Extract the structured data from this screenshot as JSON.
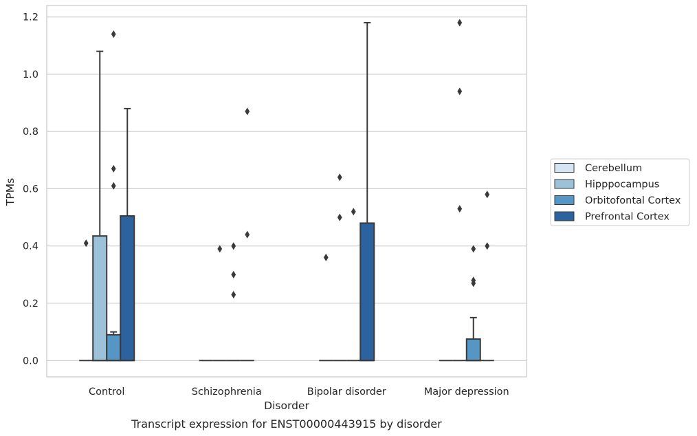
{
  "chart_data": {
    "type": "box",
    "caption": "Transcript expression for ENST00000443915 by disorder",
    "xlabel": "Disorder",
    "ylabel": "TPMs",
    "ylim": [
      -0.057,
      1.24
    ],
    "yticks": [
      0.0,
      0.2,
      0.4,
      0.6,
      0.8,
      1.0,
      1.2
    ],
    "ytick_labels": [
      "0.0",
      "0.2",
      "0.4",
      "0.6",
      "0.8",
      "1.0",
      "1.2"
    ],
    "grid": "horizontal",
    "legend_position": "right-outside",
    "categories": [
      "Control",
      "Schizophrenia",
      "Bipolar disorder",
      "Major depression"
    ],
    "series": [
      {
        "name": "Cerebellum",
        "color": "#d5e5f2",
        "boxes": [
          {
            "q1": 0,
            "median": 0,
            "q3": 0,
            "whislo": 0,
            "whishi": 0,
            "fliers": [
              0.41
            ]
          },
          {
            "q1": 0,
            "median": 0,
            "q3": 0,
            "whislo": 0,
            "whishi": 0,
            "fliers": []
          },
          {
            "q1": 0,
            "median": 0,
            "q3": 0,
            "whislo": 0,
            "whishi": 0,
            "fliers": [
              0.36
            ]
          },
          {
            "q1": 0,
            "median": 0,
            "q3": 0,
            "whislo": 0,
            "whishi": 0,
            "fliers": []
          }
        ]
      },
      {
        "name": "Hipppocampus",
        "color": "#9cc2da",
        "boxes": [
          {
            "q1": 0,
            "median": 0,
            "q3": 0.435,
            "whislo": 0,
            "whishi": 1.08,
            "fliers": []
          },
          {
            "q1": 0,
            "median": 0,
            "q3": 0,
            "whislo": 0,
            "whishi": 0,
            "fliers": [
              0.39
            ]
          },
          {
            "q1": 0,
            "median": 0,
            "q3": 0,
            "whislo": 0,
            "whishi": 0,
            "fliers": [
              0.64,
              0.5
            ]
          },
          {
            "q1": 0,
            "median": 0,
            "q3": 0,
            "whislo": 0,
            "whishi": 0,
            "fliers": [
              0.53,
              1.18,
              0.94
            ]
          }
        ]
      },
      {
        "name": "Orbitofontal Cortex",
        "color": "#5696c4",
        "boxes": [
          {
            "q1": 0,
            "median": 0,
            "q3": 0.09,
            "whislo": 0,
            "whishi": 0.1,
            "fliers": [
              1.14,
              0.67,
              0.61
            ]
          },
          {
            "q1": 0,
            "median": 0,
            "q3": 0,
            "whislo": 0,
            "whishi": 0,
            "fliers": [
              0.4,
              0.3,
              0.23
            ]
          },
          {
            "q1": 0,
            "median": 0,
            "q3": 0,
            "whislo": 0,
            "whishi": 0,
            "fliers": [
              0.52
            ]
          },
          {
            "q1": 0,
            "median": 0,
            "q3": 0.075,
            "whislo": 0,
            "whishi": 0.15,
            "fliers": [
              0.39,
              0.28,
              0.27
            ]
          }
        ]
      },
      {
        "name": "Prefrontal Cortex",
        "color": "#2c629e",
        "boxes": [
          {
            "q1": 0,
            "median": 0,
            "q3": 0.505,
            "whislo": 0,
            "whishi": 0.88,
            "fliers": []
          },
          {
            "q1": 0,
            "median": 0,
            "q3": 0,
            "whislo": 0,
            "whishi": 0,
            "fliers": [
              0.87,
              0.44
            ]
          },
          {
            "q1": 0,
            "median": 0,
            "q3": 0.48,
            "whislo": 0,
            "whishi": 1.18,
            "fliers": []
          },
          {
            "q1": 0,
            "median": 0,
            "q3": 0,
            "whislo": 0,
            "whishi": 0,
            "fliers": [
              0.58,
              0.4
            ]
          }
        ]
      }
    ]
  }
}
